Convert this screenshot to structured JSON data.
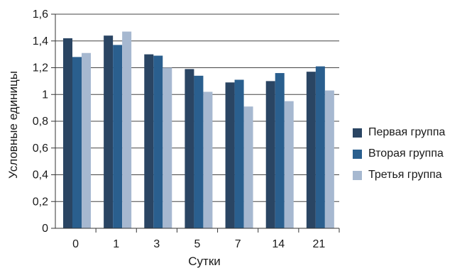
{
  "chart_data": {
    "type": "bar",
    "categories": [
      "0",
      "1",
      "3",
      "5",
      "7",
      "14",
      "21"
    ],
    "series": [
      {
        "name": "Первая группа",
        "color": "#2a4563",
        "values": [
          1.42,
          1.44,
          1.3,
          1.19,
          1.09,
          1.1,
          1.17
        ]
      },
      {
        "name": "Вторая группа",
        "color": "#2a5f8e",
        "values": [
          1.28,
          1.37,
          1.29,
          1.14,
          1.11,
          1.16,
          1.21
        ]
      },
      {
        "name": "Третья группа",
        "color": "#a6b8d0",
        "values": [
          1.31,
          1.47,
          1.2,
          1.02,
          0.91,
          0.95,
          1.03
        ]
      }
    ],
    "xlabel": "Сутки",
    "ylabel": "Условные единицы",
    "ylim": [
      0,
      1.6
    ],
    "yticks": [
      0,
      0.2,
      0.4,
      0.6,
      0.8,
      1,
      1.2,
      1.4,
      1.6
    ],
    "ytick_labels": [
      "0",
      "0,2",
      "0,4",
      "0,6",
      "0,8",
      "1",
      "1,2",
      "1,4",
      "1,6"
    ],
    "grid": true,
    "legend_position": "right"
  }
}
